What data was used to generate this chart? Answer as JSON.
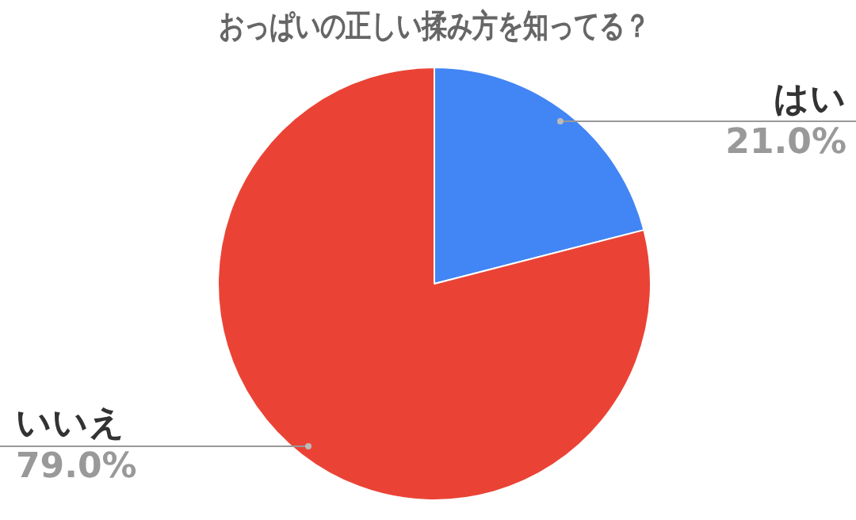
{
  "chart_data": {
    "type": "pie",
    "title": "おっぱいの正しい揉み方を知ってる？",
    "categories": [
      "はい",
      "いいえ"
    ],
    "values": [
      21.0,
      79.0
    ],
    "colors": [
      "#4285f4",
      "#ea4335"
    ],
    "value_labels": [
      "21.0%",
      "79.0%"
    ],
    "legend": false
  }
}
